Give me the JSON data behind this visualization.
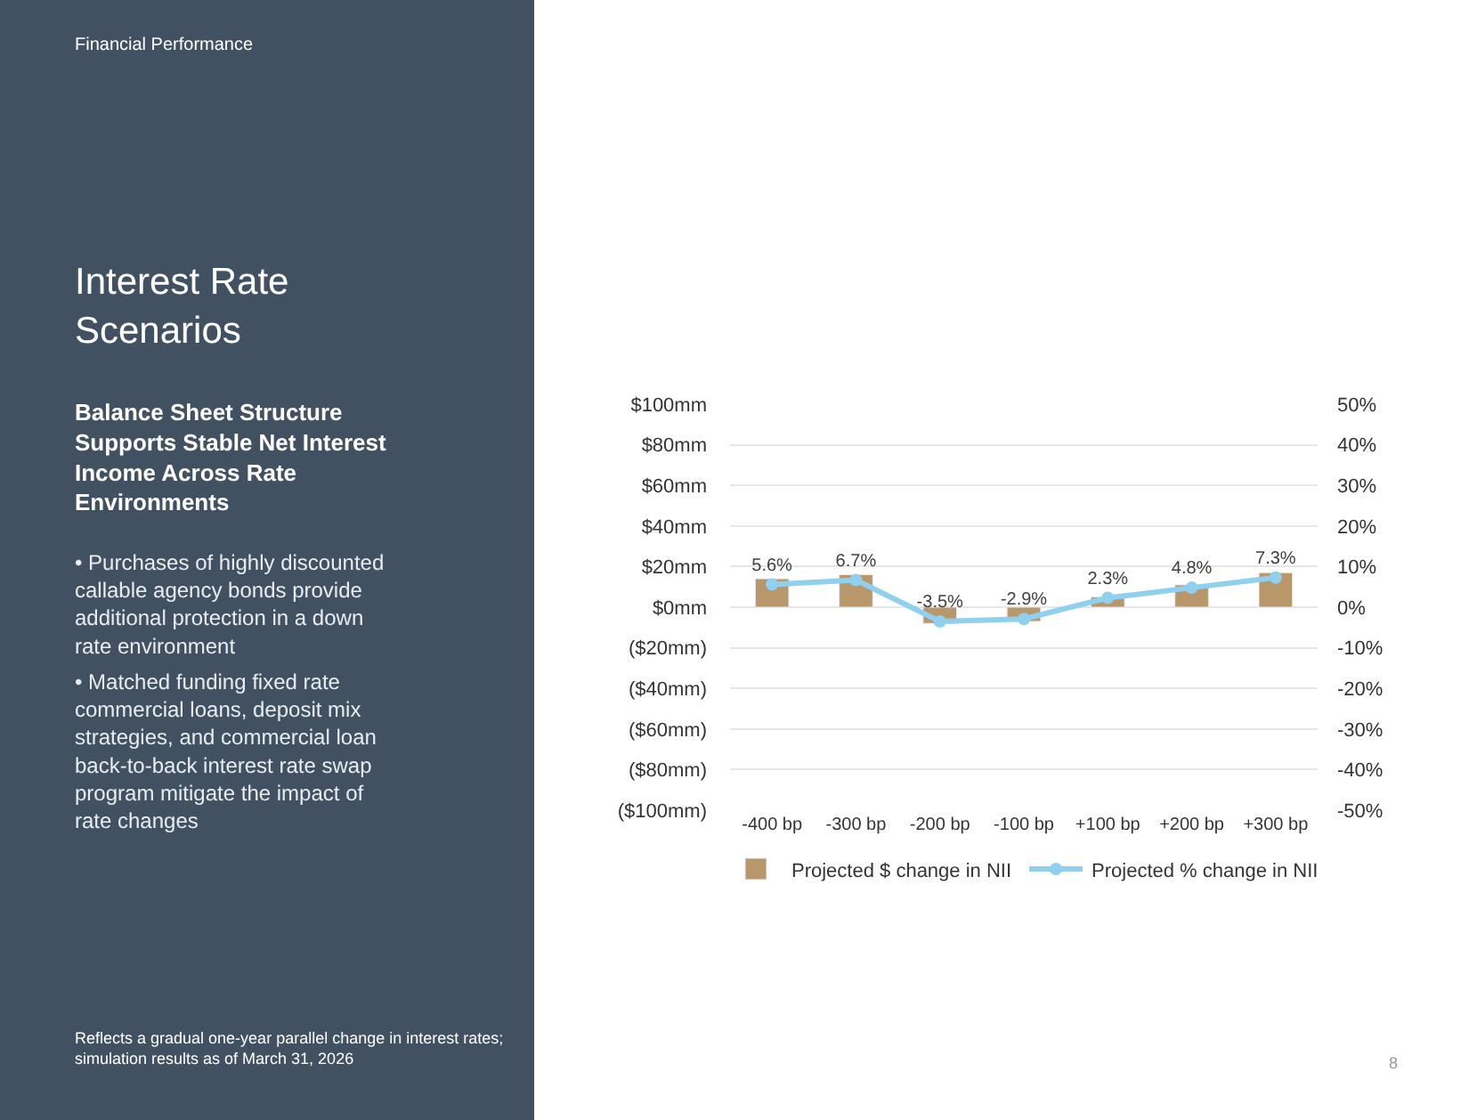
{
  "chart_data": {
    "type": "bar",
    "title": "Interest Rate Scenarios",
    "subtitle": "Balance Sheet Structure Supports Stable Net Interest Income Across Rate Environments",
    "annotations": [
      "Financial Performance",
      "• Purchases of highly discounted callable agency bonds provide additional protection in a down rate environment",
      "• Matched funding fixed rate commercial loans, deposit mix strategies, and commercial loan back-to-back interest rate swap program mitigate the impact of rate changes",
      "Reflects a gradual one-year parallel change in interest rates; simulation results as of March 31, 2026",
      "8"
    ],
    "categories": [
      "-400 bp",
      "-300 bp",
      "-200 bp",
      "-100 bp",
      "+100 bp",
      "+200 bp",
      "+300 bp"
    ],
    "series": [
      {
        "name": "Projected $ change in NII",
        "color": "#b8976a",
        "values": [
          14,
          16,
          -8,
          -7,
          5,
          11,
          17
        ]
      },
      {
        "name": "Projected % change in NII",
        "type": "line",
        "axis": "y2",
        "color": "#8fd0ef",
        "marker": "circle",
        "values": [
          5.6,
          6.7,
          -3.5,
          -2.9,
          2.3,
          4.8,
          7.3
        ],
        "value_labels": [
          "5.6%",
          "6.7%",
          "-3.5%",
          "-2.9%",
          "2.3%",
          "4.8%",
          "7.3%"
        ]
      }
    ],
    "ylim": [
      -100,
      100
    ],
    "yticks": [
      {
        "value": -100,
        "label": "($100mm)"
      },
      {
        "value": -80,
        "label": "($80mm)"
      },
      {
        "value": -60,
        "label": "($60mm)"
      },
      {
        "value": -40,
        "label": "($40mm)"
      },
      {
        "value": -20,
        "label": "($20mm)"
      },
      {
        "value": 0,
        "label": "$0mm"
      },
      {
        "value": 20,
        "label": "$20mm"
      },
      {
        "value": 40,
        "label": "$40mm"
      },
      {
        "value": 60,
        "label": "$60mm"
      },
      {
        "value": 80,
        "label": "$80mm"
      },
      {
        "value": 100,
        "label": "$100mm"
      }
    ],
    "y2lim": [
      -50,
      50
    ],
    "y2ticks": [
      {
        "value": -50,
        "label": "-50%"
      },
      {
        "value": -40,
        "label": "-40%"
      },
      {
        "value": -30,
        "label": "-30%"
      },
      {
        "value": -20,
        "label": "-20%"
      },
      {
        "value": -10,
        "label": "-10%"
      },
      {
        "value": 0,
        "label": "0%"
      },
      {
        "value": 10,
        "label": "10%"
      },
      {
        "value": 20,
        "label": "20%"
      },
      {
        "value": 30,
        "label": "30%"
      },
      {
        "value": 40,
        "label": "40%"
      },
      {
        "value": 50,
        "label": "50%"
      }
    ],
    "grid": "y",
    "legend": "bottom"
  }
}
